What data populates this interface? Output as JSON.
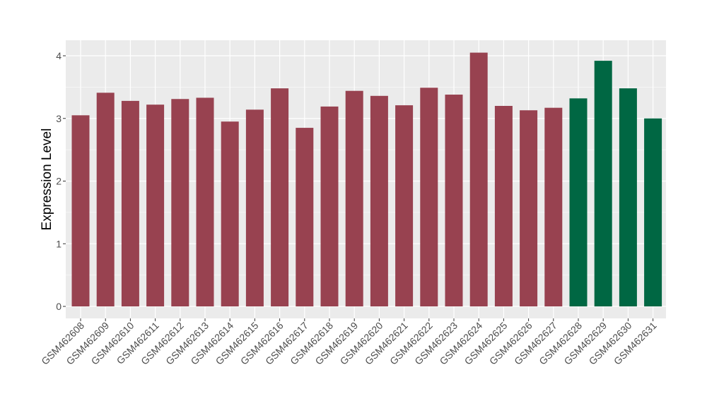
{
  "chart_data": {
    "type": "bar",
    "title": "",
    "xlabel": "",
    "ylabel": "Expression Level",
    "ylim": [
      0,
      4.2
    ],
    "yticks": [
      0,
      1,
      2,
      3,
      4
    ],
    "grid": true,
    "legend": "none",
    "categories": [
      "GSM462608",
      "GSM462609",
      "GSM462610",
      "GSM462611",
      "GSM462612",
      "GSM462613",
      "GSM462614",
      "GSM462615",
      "GSM462616",
      "GSM462617",
      "GSM462618",
      "GSM462619",
      "GSM462620",
      "GSM462621",
      "GSM462622",
      "GSM462623",
      "GSM462624",
      "GSM462625",
      "GSM462626",
      "GSM462627",
      "GSM462628",
      "GSM462629",
      "GSM462630",
      "GSM462631"
    ],
    "values": [
      3.05,
      3.41,
      3.28,
      3.22,
      3.31,
      3.33,
      2.95,
      3.14,
      3.48,
      2.85,
      3.19,
      3.44,
      3.36,
      3.21,
      3.49,
      3.38,
      4.05,
      3.2,
      3.13,
      3.17,
      3.32,
      3.92,
      3.48,
      3.0
    ],
    "groups": [
      "a",
      "a",
      "a",
      "a",
      "a",
      "a",
      "a",
      "a",
      "a",
      "a",
      "a",
      "a",
      "a",
      "a",
      "a",
      "a",
      "a",
      "a",
      "a",
      "a",
      "b",
      "b",
      "b",
      "b"
    ],
    "colors": {
      "a": "#984250",
      "b": "#006743",
      "panel": "#EBEBEB",
      "grid": "#FFFFFF",
      "text": "#000000",
      "axis_text": "#4D4D4D"
    }
  }
}
